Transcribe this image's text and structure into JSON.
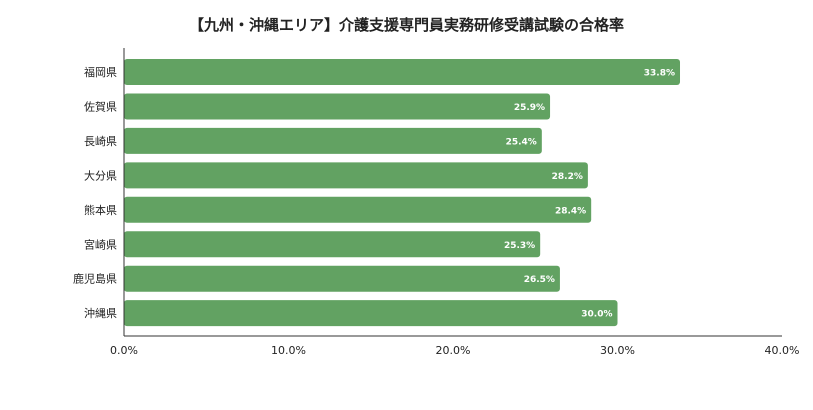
{
  "chart_data": {
    "type": "bar",
    "orientation": "horizontal",
    "title": "【九州・沖縄エリア】介護支援専門員実務研修受講試験の合格率",
    "xlabel": "",
    "ylabel": "",
    "categories": [
      "福岡県",
      "佐賀県",
      "長崎県",
      "大分県",
      "熊本県",
      "宮崎県",
      "鹿児島県",
      "沖縄県"
    ],
    "values": [
      33.8,
      25.9,
      25.4,
      28.2,
      28.4,
      25.3,
      26.5,
      30.0
    ],
    "value_labels": [
      "33.8%",
      "25.9%",
      "25.4%",
      "28.2%",
      "28.4%",
      "25.3%",
      "26.5%",
      "30.0%"
    ],
    "xlim": [
      0,
      40
    ],
    "xticks": [
      0,
      10,
      20,
      30,
      40
    ],
    "xtick_labels": [
      "0.0%",
      "10.0%",
      "20.0%",
      "30.0%",
      "40.0%"
    ],
    "grid": false,
    "legend": "none",
    "bar_color": "#62a262"
  }
}
